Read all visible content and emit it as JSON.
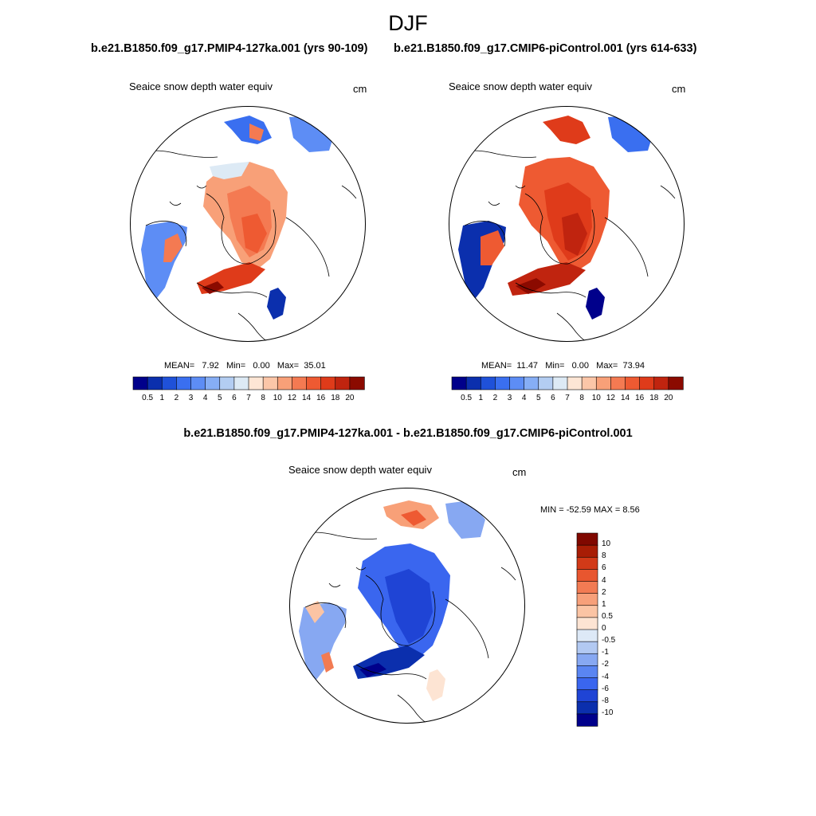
{
  "title": "DJF",
  "palette": {
    "abs": [
      "#00008b",
      "#0b2fad",
      "#1f51d9",
      "#3a6ff0",
      "#5d8df5",
      "#86aef5",
      "#b3cdf2",
      "#ddeaf5",
      "#fde6d5",
      "#fbc6a8",
      "#f8a078",
      "#f47a52",
      "#ee5a32",
      "#df3b1a",
      "#c0240f",
      "#8b0a00"
    ],
    "diff": [
      "#00008b",
      "#0b2fad",
      "#1f44d5",
      "#3a66ef",
      "#5a85f2",
      "#87a8f2",
      "#b2c9f2",
      "#dde9f7",
      "#fde4d3",
      "#fbc4a4",
      "#f7a07a",
      "#f27b53",
      "#e8562f",
      "#d23a18",
      "#a81d05",
      "#800800"
    ]
  },
  "panels": [
    {
      "case": "b.e21.B1850.f09_g17.PMIP4-127ka.001 (yrs 90-109)",
      "variable": "Seaice snow depth water equiv",
      "units": "cm",
      "stats": {
        "mean_label": "MEAN=",
        "mean": "7.92",
        "min_label": "Min=",
        "min": "0.00",
        "max_label": "Max=",
        "max": "35.01"
      },
      "colorbar_ticks": [
        "0.5",
        "1",
        "2",
        "3",
        "4",
        "5",
        "6",
        "7",
        "8",
        "10",
        "12",
        "14",
        "16",
        "18",
        "20"
      ]
    },
    {
      "case": "b.e21.B1850.f09_g17.CMIP6-piControl.001 (yrs 614-633)",
      "variable": "Seaice snow depth water equiv",
      "units": "cm",
      "stats": {
        "mean_label": "MEAN=",
        "mean": "11.47",
        "min_label": "Min=",
        "min": "0.00",
        "max_label": "Max=",
        "max": "73.94"
      },
      "colorbar_ticks": [
        "0.5",
        "1",
        "2",
        "3",
        "4",
        "5",
        "6",
        "7",
        "8",
        "10",
        "12",
        "14",
        "16",
        "18",
        "20"
      ]
    }
  ],
  "difference": {
    "title": "b.e21.B1850.f09_g17.PMIP4-127ka.001 - b.e21.B1850.f09_g17.CMIP6-piControl.001",
    "variable": "Seaice snow depth water equiv",
    "units": "cm",
    "minmax": "MIN = -52.59 MAX =   8.56",
    "colorbar_ticks": [
      "10",
      "8",
      "6",
      "4",
      "2",
      "1",
      "0.5",
      "0",
      "-0.5",
      "-1",
      "-2",
      "-4",
      "-6",
      "-8",
      "-10"
    ]
  }
}
